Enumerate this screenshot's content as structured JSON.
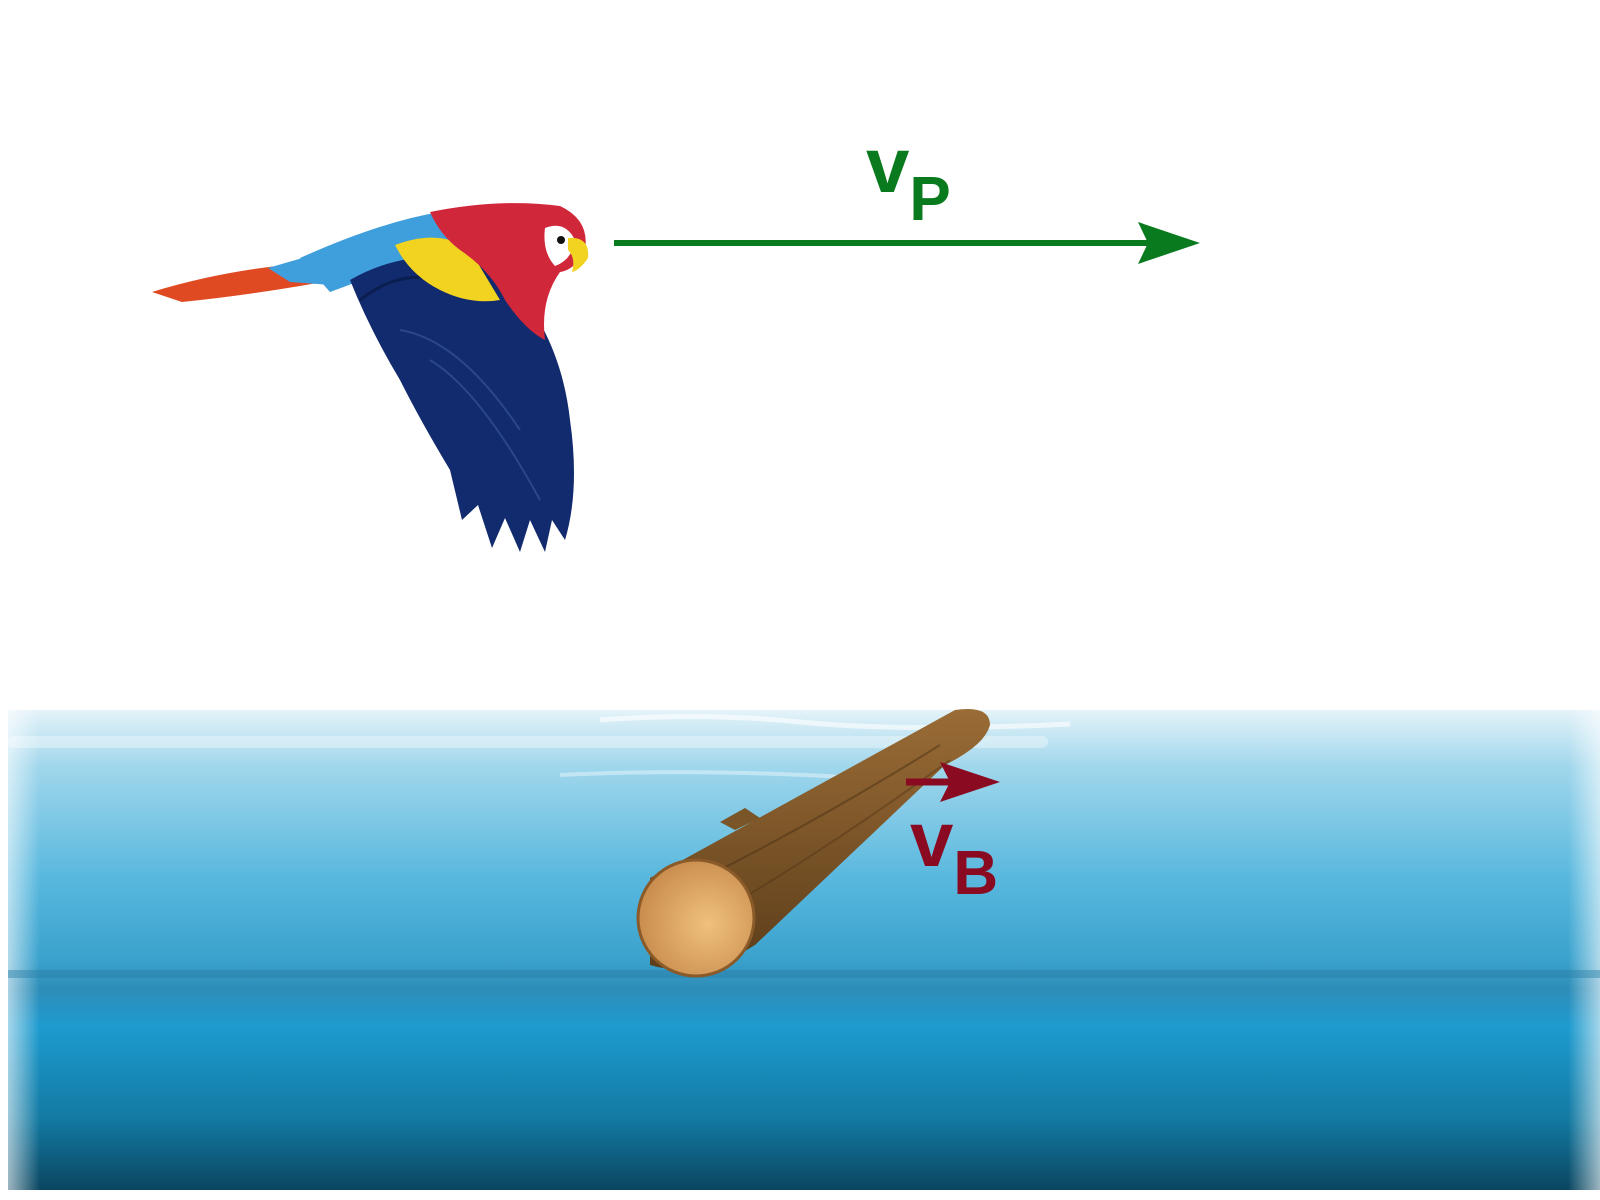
{
  "vectors": {
    "parrot": {
      "symbol": "v",
      "subscript": "P",
      "color": "#0a7a1e"
    },
    "log": {
      "symbol": "v",
      "subscript": "B",
      "color": "#8a0a22"
    }
  },
  "colors": {
    "background": "#ffffff",
    "water_top": "#d6eef7",
    "water_mid": "#2aa0cf",
    "water_deep": "#0a4a66",
    "log_bark": "#7a5528",
    "log_end": "#d9a263",
    "parrot_red": "#d0273a",
    "parrot_blue": "#102a6e",
    "parrot_light_blue": "#3f9fdc",
    "parrot_yellow": "#f2d320"
  },
  "icons": [
    "parrot-icon",
    "log-icon",
    "water-surface"
  ]
}
